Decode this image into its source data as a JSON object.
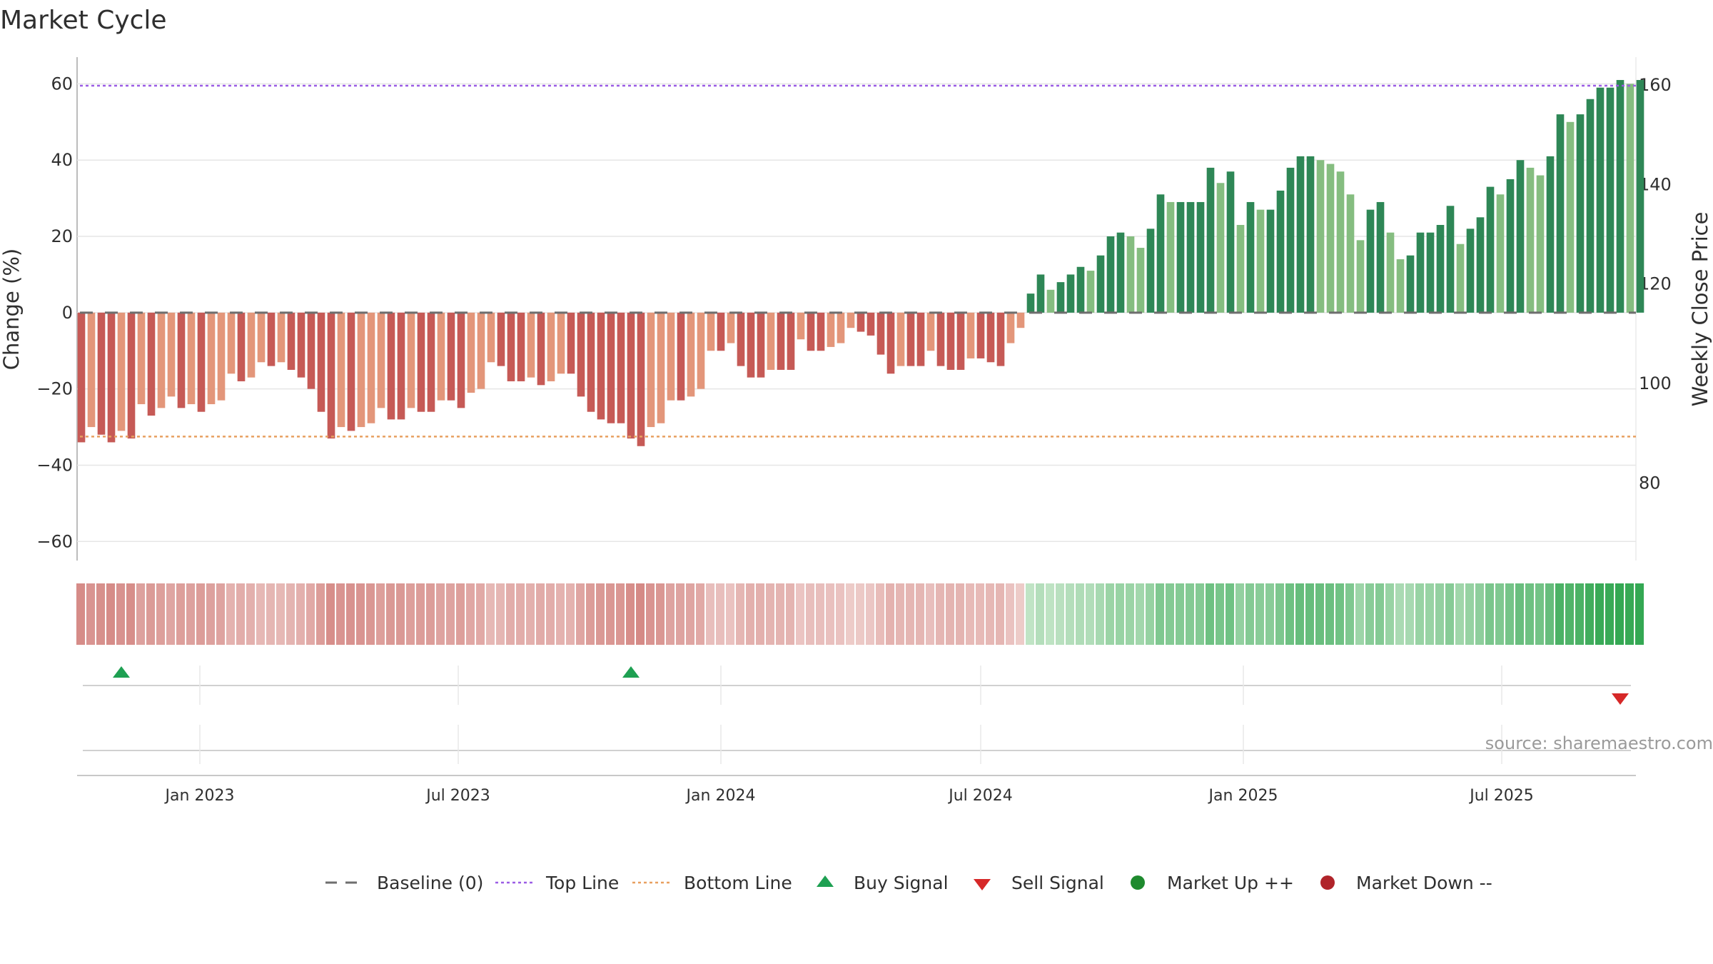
{
  "chart_data": {
    "type": "bar",
    "title": "Market Cycle",
    "ylabel": "Change (%)",
    "y2label": "Weekly Close Price",
    "source": "source: sharemaestro.com",
    "ylim": [
      -65,
      67
    ],
    "y_ticks": [
      60,
      40,
      20,
      0,
      -20,
      -40,
      -60
    ],
    "y2lim": [
      64.4,
      165.6
    ],
    "y2_ticks": [
      160,
      140,
      120,
      100,
      80
    ],
    "x_start": "2022-10-10",
    "x_range": [
      "2022-10-07",
      "2025-10-03"
    ],
    "x_ticks": [
      {
        "label": "Jan 2023",
        "date": "2023-01-01"
      },
      {
        "label": "Jul 2023",
        "date": "2023-07-01"
      },
      {
        "label": "Jan 2024",
        "date": "2024-01-01"
      },
      {
        "label": "Jul 2024",
        "date": "2024-07-01"
      },
      {
        "label": "Jan 2025",
        "date": "2025-01-01"
      },
      {
        "label": "Jul 2025",
        "date": "2025-07-01"
      }
    ],
    "top_line": 59.5,
    "bottom_line": -32.5,
    "baseline": 0,
    "values": [
      -34,
      -30,
      -32,
      -34,
      -31,
      -33,
      -24,
      -27,
      -25,
      -22,
      -25,
      -24,
      -26,
      -24,
      -23,
      -16,
      -18,
      -17,
      -13,
      -14,
      -13,
      -15,
      -17,
      -20,
      -26,
      -33,
      -30,
      -31,
      -30,
      -29,
      -25,
      -28,
      -28,
      -25,
      -26,
      -26,
      -23,
      -23,
      -25,
      -21,
      -20,
      -13,
      -14,
      -18,
      -18,
      -17,
      -19,
      -18,
      -16,
      -16,
      -22,
      -26,
      -28,
      -29,
      -29,
      -33,
      -35,
      -30,
      -29,
      -23,
      -23,
      -22,
      -20,
      -10,
      -10,
      -8,
      -14,
      -17,
      -17,
      -15,
      -15,
      -15,
      -7,
      -10,
      -10,
      -9,
      -8,
      -4,
      -5,
      -6,
      -11,
      -16,
      -14,
      -14,
      -14,
      -10,
      -14,
      -15,
      -15,
      -12,
      -12,
      -13,
      -14,
      -8,
      -4,
      5,
      10,
      6,
      8,
      10,
      12,
      11,
      15,
      20,
      21,
      20,
      17,
      22,
      31,
      29,
      29,
      29,
      29,
      38,
      34,
      37,
      23,
      29,
      27,
      27,
      32,
      38,
      41,
      41,
      40,
      39,
      37,
      31,
      19,
      27,
      29,
      21,
      14,
      15,
      21,
      21,
      23,
      28,
      18,
      22,
      25,
      33,
      31,
      35,
      40,
      38,
      36,
      41,
      52,
      50,
      52,
      56,
      59,
      59,
      61,
      60,
      61
    ],
    "signals": [
      {
        "type": "buy",
        "date": "2022-11-07"
      },
      {
        "type": "buy",
        "date": "2023-10-30"
      },
      {
        "type": "sell",
        "date": "2025-09-22"
      }
    ],
    "colors": {
      "neg_dark": "#c65a56",
      "neg_light": "#e3967a",
      "pos_dark": "#2e8756",
      "pos_light": "#85bd80",
      "top_line": "#9b5de5",
      "bottom_line": "#e8a060",
      "baseline": "#6e6e6e",
      "buy": "#1ea052",
      "sell": "#d62828",
      "market_up": "#1e8a2e",
      "market_down": "#b0242a"
    }
  },
  "legend": [
    {
      "key": "baseline",
      "label": "Baseline (0)"
    },
    {
      "key": "top",
      "label": "Top Line"
    },
    {
      "key": "bottom",
      "label": "Bottom Line"
    },
    {
      "key": "buy",
      "label": "Buy Signal"
    },
    {
      "key": "sell",
      "label": "Sell Signal"
    },
    {
      "key": "up",
      "label": "Market Up ++"
    },
    {
      "key": "down",
      "label": "Market Down --"
    }
  ]
}
